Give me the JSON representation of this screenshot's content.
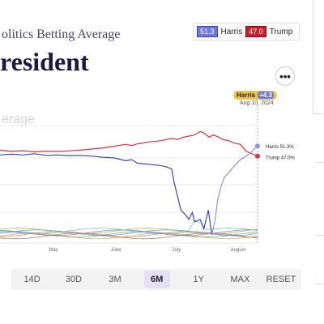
{
  "header": {
    "subtitle": "olitics Betting Average",
    "title": "resident",
    "more_label": "•••"
  },
  "legend": {
    "harris_value": "51.3",
    "harris_label": "Harris",
    "trump_value": "47.0",
    "trump_label": "Trump"
  },
  "badge": {
    "name": "Harris",
    "delta": "+4.3",
    "date": "Aug 10, 2024"
  },
  "range_buttons": [
    "14D",
    "30D",
    "3M",
    "6M",
    "1Y",
    "MAX",
    "RESET"
  ],
  "active_range": "6M",
  "chart_data": {
    "type": "line",
    "watermark": "erage",
    "x_tick_labels": [
      "May",
      "June",
      "July",
      "August"
    ],
    "end_labels": {
      "harris": "Harris 51.3%",
      "trump": "Trump 47.0%"
    },
    "colors": {
      "harris": "#3b45b8",
      "harris_recent": "#8a93e0",
      "trump": "#e0303a",
      "cursor": "#999999"
    },
    "series": [
      {
        "name": "Trump",
        "key": "trump",
        "values": [
          [
            0,
            49.5
          ],
          [
            10,
            49.0
          ],
          [
            20,
            49.3
          ],
          [
            30,
            48.8
          ],
          [
            40,
            49.1
          ],
          [
            50,
            49.0
          ],
          [
            60,
            49.2
          ],
          [
            70,
            49.5
          ],
          [
            80,
            50.0
          ],
          [
            90,
            50.5
          ],
          [
            100,
            51.2
          ],
          [
            110,
            52.0
          ],
          [
            115,
            51.5
          ],
          [
            120,
            52.2
          ],
          [
            130,
            53.0
          ],
          [
            140,
            53.5
          ],
          [
            150,
            54.5
          ],
          [
            155,
            54.0
          ],
          [
            160,
            55.0
          ],
          [
            165,
            55.5
          ],
          [
            170,
            56.0
          ],
          [
            175,
            57.5
          ],
          [
            178,
            56.8
          ],
          [
            183,
            55.0
          ],
          [
            186,
            56.0
          ],
          [
            190,
            55.3
          ],
          [
            195,
            54.0
          ],
          [
            200,
            53.5
          ],
          [
            205,
            52.5
          ],
          [
            210,
            52.0
          ],
          [
            215,
            49.0
          ],
          [
            220,
            48.0
          ],
          [
            225,
            47.0
          ]
        ]
      },
      {
        "name": "Harris",
        "key": "harris",
        "values": [
          [
            0,
            47.5
          ],
          [
            10,
            47.8
          ],
          [
            20,
            47.5
          ],
          [
            30,
            48.0
          ],
          [
            40,
            47.3
          ],
          [
            50,
            47.5
          ],
          [
            60,
            47.2
          ],
          [
            70,
            47.3
          ],
          [
            80,
            47.0
          ],
          [
            90,
            46.5
          ],
          [
            100,
            46.2
          ],
          [
            110,
            45.0
          ],
          [
            115,
            45.5
          ],
          [
            120,
            44.0
          ],
          [
            130,
            43.5
          ],
          [
            140,
            43.0
          ],
          [
            145,
            42.5
          ],
          [
            150,
            41.5
          ],
          [
            152,
            36.0
          ],
          [
            155,
            30.0
          ],
          [
            158,
            24.0
          ],
          [
            162,
            22.0
          ],
          [
            165,
            20.0
          ],
          [
            168,
            23.0
          ],
          [
            170,
            19.0
          ],
          [
            175,
            20.0
          ],
          [
            178,
            16.0
          ],
          [
            182,
            24.0
          ],
          [
            185,
            13.5
          ]
        ]
      },
      {
        "name": "Harris recent",
        "key": "harris_recent",
        "values": [
          [
            185,
            13.5
          ],
          [
            188,
            20.0
          ],
          [
            190,
            28.0
          ],
          [
            193,
            34.0
          ],
          [
            196,
            38.0
          ],
          [
            200,
            40.0
          ],
          [
            205,
            43.0
          ],
          [
            210,
            45.5
          ],
          [
            215,
            47.0
          ],
          [
            220,
            49.0
          ],
          [
            225,
            51.3
          ]
        ]
      }
    ],
    "minor_series_colors": [
      "#e9a23b",
      "#47b36b",
      "#b35bb5",
      "#4fc3d9",
      "#8f7d3a",
      "#dd6a6a",
      "#5a8fe0",
      "#8bbf4a"
    ]
  }
}
